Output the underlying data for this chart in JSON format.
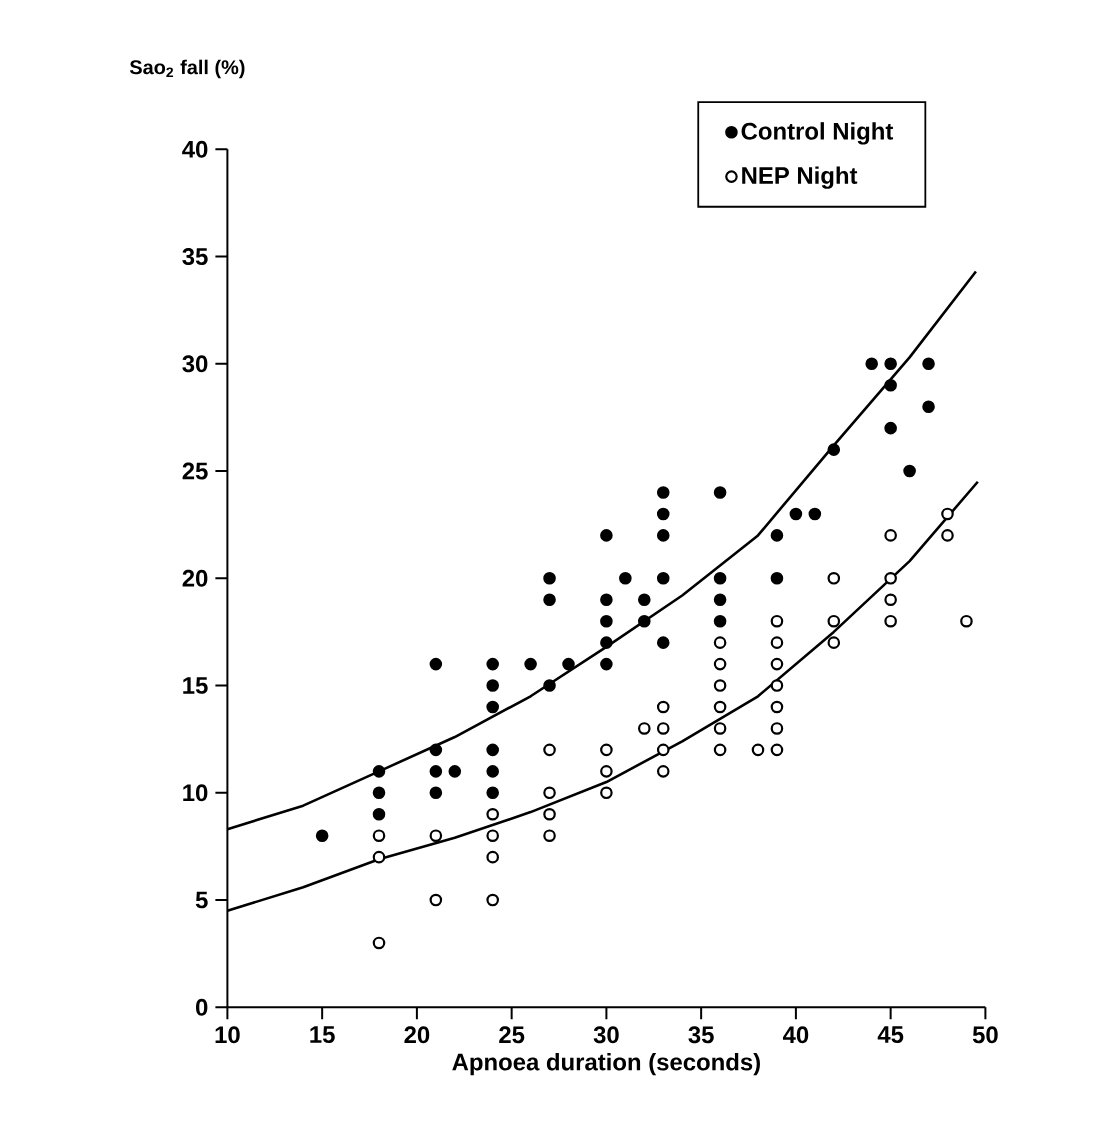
{
  "chart_data": {
    "type": "scatter",
    "xlabel": "Apnoea duration (seconds)",
    "ylabel": "Sao$_{2}$ fall (%)",
    "xlim": [
      10,
      50
    ],
    "ylim": [
      0,
      40
    ],
    "xticks": [
      10,
      15,
      20,
      25,
      30,
      35,
      40,
      45,
      50
    ],
    "yticks": [
      0,
      5,
      10,
      15,
      20,
      25,
      30,
      35,
      40
    ],
    "grid": false,
    "legend": "top right",
    "series": [
      {
        "name": "Control Night",
        "marker": "circle",
        "color": "#000000",
        "x": [
          15,
          18,
          18,
          18,
          21,
          21,
          21,
          21,
          22,
          24,
          24,
          24,
          24,
          24,
          24,
          26,
          27,
          27,
          27,
          28,
          30,
          30,
          30,
          30,
          30,
          31,
          32,
          32,
          33,
          33,
          33,
          33,
          33,
          36,
          36,
          36,
          36,
          39,
          39,
          40,
          41,
          42,
          44,
          45,
          45,
          45,
          46,
          47,
          47
        ],
        "values": [
          8,
          11,
          10,
          9,
          16,
          12,
          11,
          10,
          11,
          16,
          15,
          14,
          12,
          11,
          10,
          16,
          20,
          19,
          15,
          16,
          22,
          19,
          18,
          17,
          16,
          20,
          19,
          18,
          24,
          23,
          22,
          20,
          17,
          24,
          20,
          19,
          18,
          22,
          20,
          23,
          23,
          26,
          30,
          30,
          29,
          27,
          25,
          30,
          28
        ]
      },
      {
        "name": "NEP Night",
        "marker": "circle",
        "color": "#ffffff",
        "x": [
          18,
          18,
          18,
          21,
          21,
          24,
          24,
          24,
          24,
          27,
          27,
          27,
          27,
          30,
          30,
          30,
          32,
          33,
          33,
          33,
          33,
          36,
          36,
          36,
          36,
          36,
          36,
          38,
          39,
          39,
          39,
          39,
          39,
          39,
          39,
          42,
          42,
          42,
          45,
          45,
          45,
          45,
          48,
          48,
          49
        ],
        "values": [
          8,
          7,
          3,
          8,
          5,
          9,
          8,
          7,
          5,
          12,
          10,
          9,
          8,
          12,
          11,
          10,
          13,
          14,
          13,
          12,
          11,
          17,
          16,
          15,
          14,
          13,
          12,
          12,
          18,
          17,
          16,
          15,
          14,
          13,
          12,
          20,
          18,
          17,
          22,
          20,
          19,
          18,
          23,
          22,
          18
        ]
      },
      {
        "type": "line",
        "marker": "none",
        "line_style": "solid",
        "color": "#000000",
        "x": [
          10,
          14,
          18,
          22,
          26,
          30,
          34,
          38,
          42,
          46,
          49.5
        ],
        "values": [
          8.3,
          9.4,
          11,
          12.6,
          14.5,
          16.8,
          19.2,
          22,
          26.2,
          30.3,
          34.3
        ]
      },
      {
        "type": "line",
        "marker": "none",
        "line_style": "solid",
        "color": "#000000",
        "x": [
          10,
          14,
          18,
          22,
          26,
          30,
          34,
          38,
          42,
          46,
          49.6
        ],
        "values": [
          4.5,
          5.6,
          6.9,
          7.9,
          9.1,
          10.5,
          12.4,
          14.5,
          17.5,
          20.8,
          24.5
        ]
      }
    ]
  }
}
